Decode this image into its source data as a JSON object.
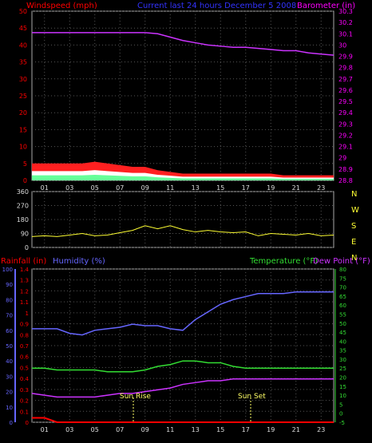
{
  "header": {
    "windspeed_label": "Windspeed (mph)",
    "period_label": "Current last 24 hours December 5 2008",
    "barometer_label": "Barometer (in)"
  },
  "colors": {
    "background": "#000000",
    "grid": "#555555",
    "axis_wind": "#ff0000",
    "axis_baro": "#ff00ff",
    "wind_gust": "#ff2020",
    "wind_avg": "#ffffff",
    "wind_low": "#66ff99",
    "barometer": "#cc33ff",
    "direction": "#ffff33",
    "humidity": "#6666ff",
    "temperature": "#33dd33",
    "dewpoint": "#cc33ff",
    "rainfall": "#ff0000",
    "annotation": "#ffff66"
  },
  "direction_panel": {
    "compass_letters": [
      "N",
      "W",
      "S",
      "E",
      "N"
    ],
    "y_ticks": [
      "360",
      "270",
      "180",
      "90",
      "0"
    ]
  },
  "bottom_panel": {
    "rainfall_label": "Rainfall (in)",
    "humidity_label": "Humidity (%)",
    "temperature_label": "Temperature (°F)",
    "dewpoint_label": "Dew Point (°F)",
    "sunrise_label": "Sun Rise",
    "sunset_label": "Sun Set"
  },
  "x_ticks": [
    "01",
    "03",
    "05",
    "07",
    "09",
    "11",
    "13",
    "15",
    "17",
    "19",
    "21",
    "23"
  ],
  "chart_data": [
    {
      "type": "area",
      "title": "Current last 24 hours December 5 2008",
      "xlabel": "",
      "ylabel": "Windspeed (mph)",
      "y2label": "Barometer (in)",
      "ylim": [
        0,
        50
      ],
      "y2lim": [
        28.8,
        30.3
      ],
      "y_ticks": [
        "0",
        "5",
        "10",
        "15",
        "20",
        "25",
        "30",
        "35",
        "40",
        "45",
        "50"
      ],
      "y2_ticks": [
        "28.8",
        "28.9",
        "29",
        "29.1",
        "29.2",
        "29.3",
        "29.4",
        "29.5",
        "29.6",
        "29.7",
        "29.8",
        "29.9",
        "30",
        "30.1",
        "30.2",
        "30.3"
      ],
      "x": [
        0,
        1,
        2,
        3,
        4,
        5,
        6,
        7,
        8,
        9,
        10,
        11,
        12,
        13,
        14,
        15,
        16,
        17,
        18,
        19,
        20,
        21,
        22,
        23,
        24
      ],
      "series": [
        {
          "name": "Windspeed (mph)",
          "values": [
            5,
            5,
            5,
            5,
            5,
            5.5,
            5,
            4.5,
            4,
            4,
            3,
            2.5,
            2,
            2,
            2,
            2,
            2,
            2,
            2,
            2,
            1.5,
            1.5,
            1.5,
            1.5,
            1.5
          ]
        },
        {
          "name": "Barometer (in)",
          "values": [
            30.11,
            30.11,
            30.11,
            30.11,
            30.11,
            30.11,
            30.11,
            30.11,
            30.11,
            30.11,
            30.1,
            30.07,
            30.04,
            30.02,
            30.0,
            29.99,
            29.98,
            29.98,
            29.97,
            29.96,
            29.95,
            29.95,
            29.93,
            29.92,
            29.91
          ]
        }
      ]
    },
    {
      "type": "line",
      "ylabel": "Direction",
      "ylim": [
        0,
        360
      ],
      "x": [
        0,
        1,
        2,
        3,
        4,
        5,
        6,
        7,
        8,
        9,
        10,
        11,
        12,
        13,
        14,
        15,
        16,
        17,
        18,
        19,
        20,
        21,
        22,
        23,
        24
      ],
      "series": [
        {
          "name": "Direction",
          "values": [
            70,
            75,
            70,
            80,
            90,
            75,
            80,
            95,
            110,
            140,
            120,
            140,
            115,
            100,
            110,
            100,
            95,
            100,
            75,
            90,
            85,
            80,
            90,
            75,
            80
          ]
        }
      ]
    },
    {
      "type": "line",
      "xlabel": "",
      "ylabel": "Rainfall (in)",
      "ylim": [
        0,
        1.4
      ],
      "y_ticks": [
        "0",
        "0.1",
        "0.2",
        "0.3",
        "0.4",
        "0.5",
        "0.6",
        "0.7",
        "0.8",
        "0.9",
        "1",
        "1.1",
        "1.2",
        "1.3",
        "1.4"
      ],
      "humidity_ticks": [
        "0",
        "10",
        "20",
        "30",
        "40",
        "50",
        "60",
        "70",
        "80",
        "90",
        "100"
      ],
      "temp_ticks": [
        "-5",
        "0",
        "5",
        "10",
        "15",
        "20",
        "25",
        "30",
        "35",
        "40",
        "45",
        "50",
        "55",
        "60",
        "65",
        "70",
        "75",
        "80"
      ],
      "x": [
        0,
        1,
        2,
        3,
        4,
        5,
        6,
        7,
        8,
        9,
        10,
        11,
        12,
        13,
        14,
        15,
        16,
        17,
        18,
        19,
        20,
        21,
        22,
        23,
        24
      ],
      "series": [
        {
          "name": "Humidity (%)",
          "values": [
            61,
            61,
            61,
            58,
            57,
            60,
            61,
            62,
            64,
            63,
            63,
            61,
            60,
            67,
            72,
            77,
            80,
            82,
            84,
            84,
            84,
            85,
            85,
            85,
            85
          ]
        },
        {
          "name": "Temperature (°F)",
          "values": [
            25,
            25,
            24,
            24,
            24,
            24,
            23,
            23,
            23,
            24,
            26,
            27,
            29,
            29,
            28,
            28,
            26,
            25,
            25,
            25,
            25,
            25,
            25,
            25,
            25
          ]
        },
        {
          "name": "Dew Point (°F)",
          "values": [
            11,
            10,
            9,
            9,
            9,
            9,
            10,
            11,
            11,
            12,
            13,
            14,
            16,
            17,
            18,
            18,
            19,
            19,
            19,
            19,
            19,
            19,
            19,
            19,
            19
          ]
        },
        {
          "name": "Rainfall (in)",
          "values": [
            0.04,
            0.04,
            0,
            0,
            0,
            0,
            0,
            0,
            0,
            0,
            0,
            0,
            0,
            0,
            0,
            0,
            0,
            0,
            0,
            0,
            0,
            0,
            0,
            0,
            0
          ]
        }
      ]
    }
  ]
}
